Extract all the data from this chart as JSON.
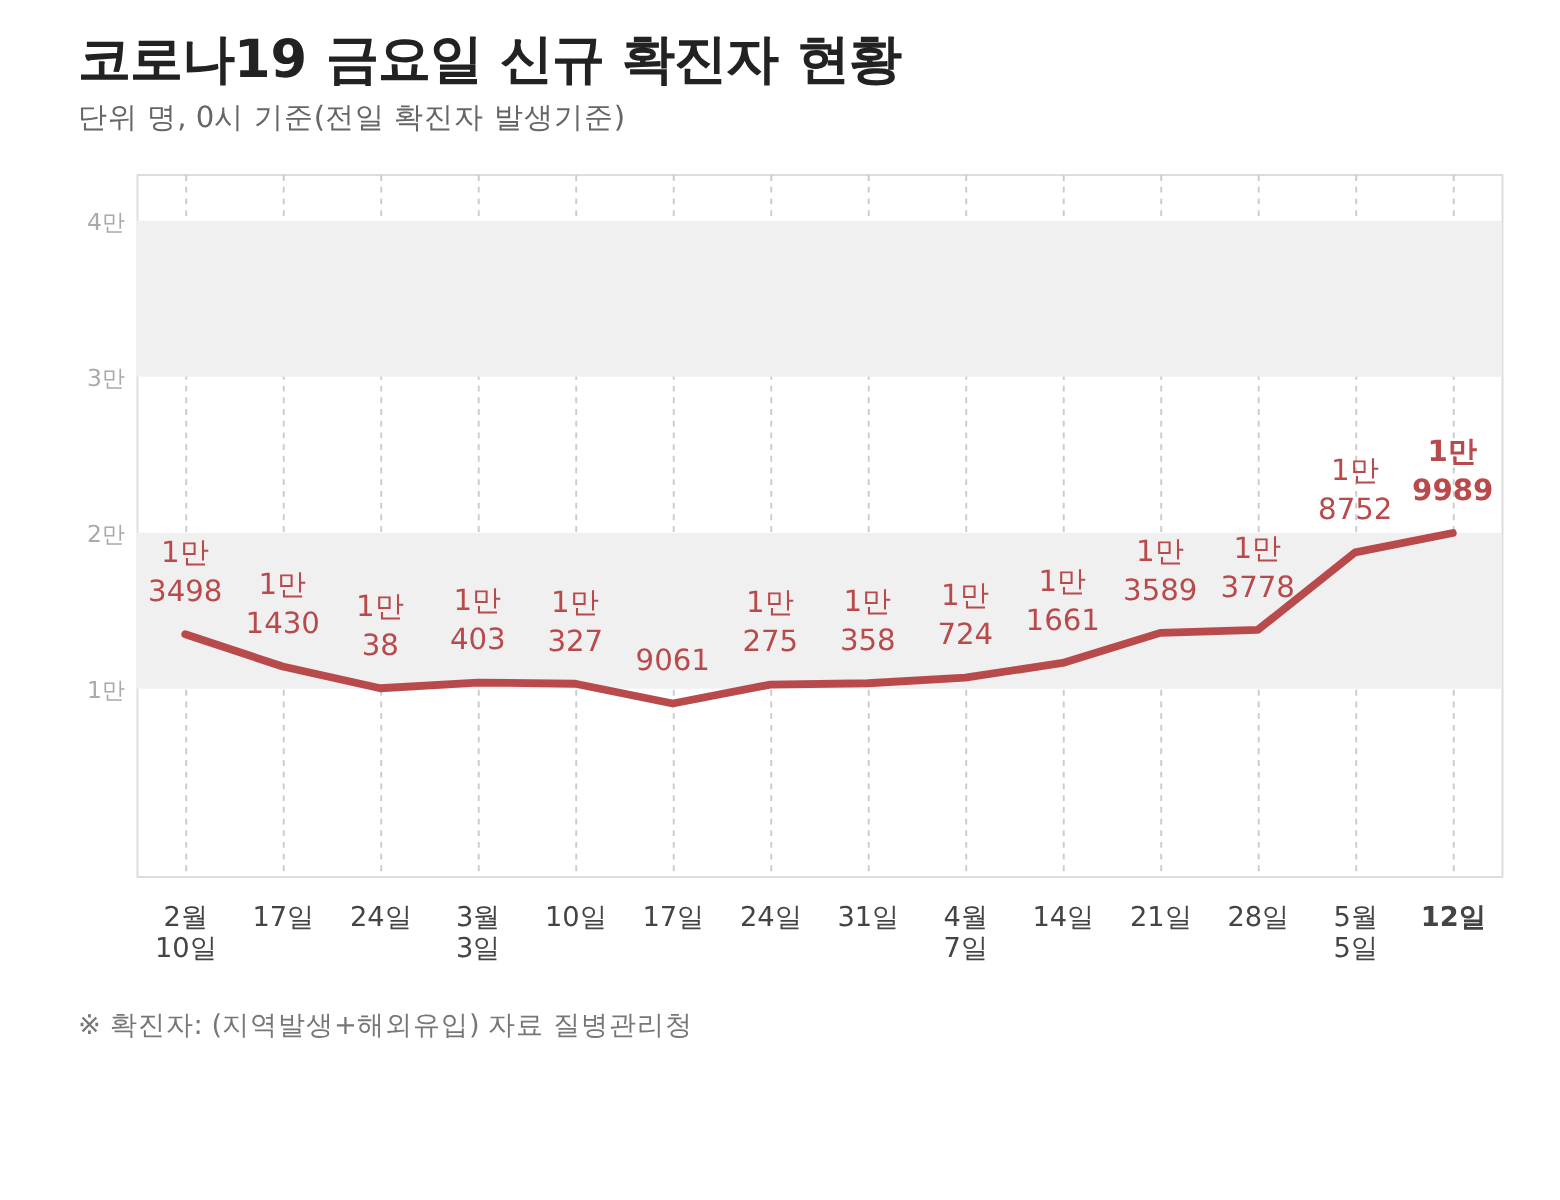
{
  "chart_data": {
    "type": "line",
    "title": "코로나19 금요일 신규 확진자 현황",
    "subtitle": "단위 명, 0시 기준(전일 확진자 발생기준)",
    "categories": [
      "2월\n10일",
      "17일",
      "24일",
      "3월\n3일",
      "10일",
      "17일",
      "24일",
      "31일",
      "4월\n7일",
      "14일",
      "21일",
      "28일",
      "5월\n5일",
      "12일"
    ],
    "series": [
      {
        "color": "#b94a4c",
        "values": [
          1.3498,
          1.143,
          1.0038,
          1.0403,
          1.0327,
          0.9061,
          1.0275,
          1.0358,
          1.0724,
          1.1661,
          1.3589,
          1.3778,
          1.8752,
          1.9989
        ]
      }
    ],
    "value_labels": [
      "1만\n3498",
      "1만\n1430",
      "1만\n38",
      "1만\n403",
      "1만\n327",
      "9061",
      "1만\n275",
      "1만\n358",
      "1만\n724",
      "1만\n1661",
      "1만\n3589",
      "1만\n3778",
      "1만\n8752",
      "1만\n9989"
    ],
    "ylim": [
      -0.2,
      4.3
    ],
    "yticks": [
      {
        "value": 1,
        "label": "1만"
      },
      {
        "value": 2,
        "label": "2만"
      },
      {
        "value": 3,
        "label": "3만"
      },
      {
        "value": 4,
        "label": "4만"
      }
    ],
    "bands": [
      {
        "axis": "y",
        "from": 1,
        "to": 2,
        "color": "#f0f0f0"
      },
      {
        "axis": "y",
        "from": 3,
        "to": 4,
        "color": "#f0f0f0"
      }
    ],
    "grid": "x",
    "line_style": "solid",
    "annotations": [
      "※ 확진자: (지역발생+해외유입)  자료 질병관리청"
    ]
  }
}
